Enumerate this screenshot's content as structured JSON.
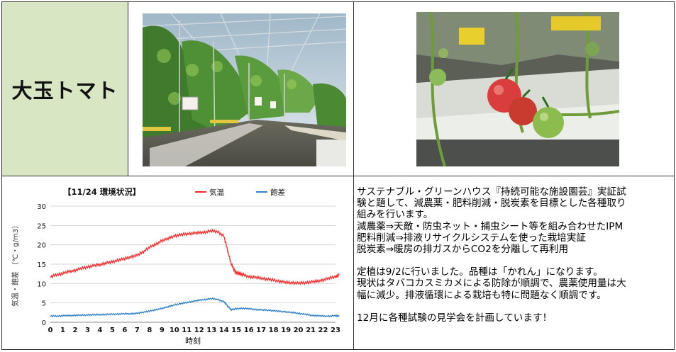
{
  "title_cell": {
    "label": "大玉トマト"
  },
  "photos": {
    "greenhouse": {
      "icon": "greenhouse-photo",
      "sign_text": ""
    },
    "tomatoes": {
      "icon": "tomato-cluster-photo"
    }
  },
  "chart_data": {
    "type": "line",
    "title": "【11/24 環境状況】",
    "xlabel": "時刻",
    "ylabel": "気温・飽差 （℃・g/m3）",
    "ylim": [
      0,
      30
    ],
    "yticks": [
      0,
      5,
      10,
      15,
      20,
      25,
      30
    ],
    "xticks": [
      "0",
      "1",
      "2",
      "3",
      "4",
      "5",
      "6",
      "7",
      "8",
      "9",
      "10",
      "11",
      "12",
      "13",
      "14",
      "15",
      "16",
      "17",
      "18",
      "19",
      "20",
      "21",
      "22",
      "23"
    ],
    "grid": true,
    "legend_position": "top",
    "series": [
      {
        "name": "気温",
        "color": "#ff2a2a",
        "x": [
          0,
          0.5,
          1,
          1.5,
          2,
          2.5,
          3,
          3.5,
          4,
          4.5,
          5,
          5.5,
          6,
          6.5,
          7,
          7.5,
          8,
          8.5,
          9,
          9.5,
          10,
          10.5,
          11,
          11.5,
          12,
          12.5,
          13,
          13.5,
          14,
          14.3,
          14.6,
          14.9,
          15.2,
          15.5,
          16,
          16.5,
          17,
          17.5,
          18,
          18.5,
          19,
          19.5,
          20,
          20.5,
          21,
          21.5,
          22,
          22.5,
          23,
          23.3
        ],
        "values": [
          11.7,
          12.3,
          12.6,
          13.1,
          13.4,
          13.9,
          14.3,
          14.6,
          14.9,
          15.3,
          15.6,
          16.1,
          16.4,
          16.9,
          17.3,
          18.2,
          19.4,
          20.1,
          21.1,
          21.6,
          22.3,
          22.6,
          22.8,
          23.0,
          23.1,
          23.3,
          23.6,
          23.4,
          22.2,
          18.5,
          15.0,
          13.0,
          12.6,
          12.3,
          11.8,
          11.6,
          11.4,
          11.1,
          10.9,
          10.6,
          10.3,
          10.2,
          10.1,
          10.2,
          10.4,
          10.6,
          10.9,
          11.4,
          11.8,
          12.2
        ]
      },
      {
        "name": "飽差",
        "color": "#2f80c8",
        "x": [
          0,
          0.5,
          1,
          1.5,
          2,
          2.5,
          3,
          3.5,
          4,
          4.5,
          5,
          5.5,
          6,
          6.5,
          7,
          7.5,
          8,
          8.5,
          9,
          9.5,
          10,
          10.5,
          11,
          11.5,
          12,
          12.5,
          13,
          13.5,
          14,
          14.3,
          14.6,
          15,
          15.5,
          16,
          16.5,
          17,
          17.5,
          18,
          18.5,
          19,
          19.5,
          20,
          20.5,
          21,
          21.5,
          22,
          22.5,
          23,
          23.3
        ],
        "values": [
          1.6,
          1.6,
          1.7,
          1.7,
          1.8,
          1.8,
          1.9,
          1.9,
          2.0,
          2.0,
          2.1,
          2.1,
          2.2,
          2.2,
          2.3,
          2.6,
          2.9,
          3.2,
          3.6,
          4.0,
          4.5,
          4.8,
          5.1,
          5.4,
          5.7,
          5.9,
          6.1,
          5.9,
          5.3,
          4.2,
          3.2,
          3.5,
          3.6,
          3.5,
          3.3,
          3.2,
          3.1,
          3.0,
          2.8,
          2.7,
          2.5,
          2.3,
          2.1,
          1.8,
          1.7,
          1.6,
          1.6,
          1.7,
          1.6
        ]
      }
    ]
  },
  "description": {
    "para1": "サステナブル・グリーンハウス『持続可能な施設園芸』実証試\n験と題して、減農薬・肥料削減・脱炭素を目標とした各種取り\n組みを行います。\n減農薬⇒天敵・防虫ネット・捕虫シート等を組み合わせたIPM\n肥料削減⇒排液リサイクルシステムを使った栽培実証\n脱炭素⇒暖房の排ガスからCO2を分離して再利用",
    "para2": "定植は9/2に行いました。品種は「かれん」になります。\n現状はタバコカスミカメによる防除が順調で、農薬使用量は大\n幅に減少。排液循環による栽培も特に問題なく順調です。",
    "para3": "12月に各種試験の見学会を計画しています！"
  }
}
